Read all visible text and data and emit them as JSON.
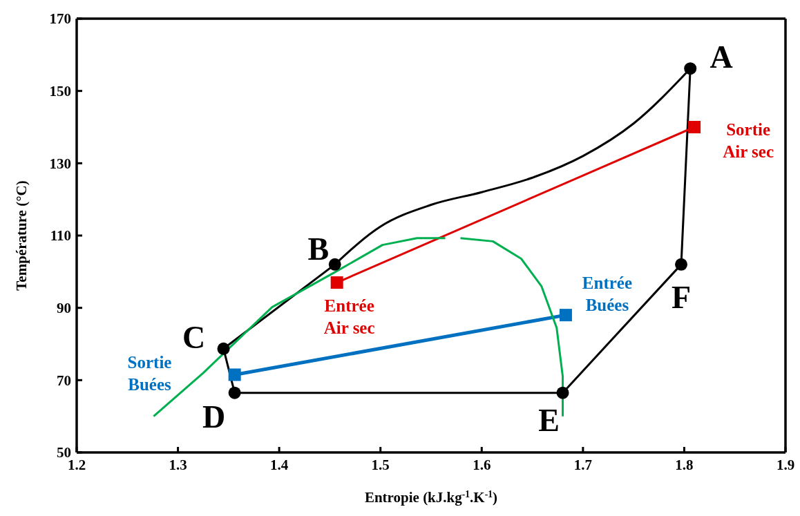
{
  "chart_data": {
    "type": "line",
    "xlabel": "Entropie (kJ.kg$^{-1}$.K$^{-1}$)",
    "ylabel": "Température (°C)",
    "xlim": [
      1.2,
      1.9
    ],
    "xticks": [
      {
        "value": 1.2,
        "label": "1.2"
      },
      {
        "value": 1.3,
        "label": "1.3"
      },
      {
        "value": 1.4,
        "label": "1.4"
      },
      {
        "value": 1.5,
        "label": "1.5"
      },
      {
        "value": 1.6,
        "label": "1.6"
      },
      {
        "value": 1.7,
        "label": "1.7"
      },
      {
        "value": 1.8,
        "label": "1.8"
      },
      {
        "value": 1.9,
        "label": "1.9"
      }
    ],
    "ylim": [
      50,
      170
    ],
    "yticks": [
      50,
      70,
      90,
      110,
      130,
      150,
      170
    ],
    "grid": false,
    "series": [
      {
        "color": "#000000",
        "marker": "none",
        "x": [
          1.806,
          1.797,
          1.68,
          1.356,
          1.345,
          1.455
        ],
        "values": [
          156.2,
          102,
          66.5,
          66.5,
          78.7,
          102
        ]
      },
      {
        "color": "#000000",
        "marker": "none",
        "x": [
          1.455,
          1.5,
          1.55,
          1.6,
          1.65,
          1.7,
          1.75,
          1.806
        ],
        "values": [
          102,
          112.5,
          118.5,
          122,
          126,
          132,
          141,
          156.2
        ]
      },
      {
        "type": "scatter",
        "color": "#000000",
        "marker": "circle",
        "x": [
          1.806,
          1.455,
          1.345,
          1.356,
          1.68,
          1.797
        ],
        "values": [
          156.2,
          102,
          78.7,
          66.5,
          66.5,
          102
        ]
      },
      {
        "color": "#e00000",
        "marker": "square",
        "x": [
          1.457,
          1.81
        ],
        "values": [
          97,
          140
        ]
      },
      {
        "color": "#0070c0",
        "marker": "square",
        "x": [
          1.356,
          1.683
        ],
        "values": [
          71.5,
          88
        ]
      },
      {
        "color": "#00b050",
        "marker": "none",
        "x": [
          1.276,
          1.325,
          1.393,
          1.454,
          1.502,
          1.536,
          1.564,
          1.57,
          1.579,
          1.611,
          1.639,
          1.659,
          1.674,
          1.68,
          1.68
        ],
        "values": [
          60,
          72,
          90.2,
          99.7,
          107.4,
          109.3,
          109.3,
          null,
          109.3,
          108.4,
          103.6,
          96,
          84.5,
          71,
          60
        ]
      }
    ],
    "annotations": [
      {
        "text": "A",
        "x": 1.806,
        "y": 156.2
      },
      {
        "text": "B",
        "x": 1.455,
        "y": 102
      },
      {
        "text": "C",
        "x": 1.345,
        "y": 78.7
      },
      {
        "text": "D",
        "x": 1.356,
        "y": 66.5
      },
      {
        "text": "E",
        "x": 1.68,
        "y": 66.5
      },
      {
        "text": "F",
        "x": 1.797,
        "y": 102
      },
      {
        "text": "Sortie\nAir sec",
        "x": 1.81,
        "y": 140
      },
      {
        "text": "Entrée\nAir sec",
        "x": 1.457,
        "y": 97
      },
      {
        "text": "Entrée\nBuées",
        "x": 1.683,
        "y": 88
      },
      "Sortie\nBuées"
    ]
  }
}
